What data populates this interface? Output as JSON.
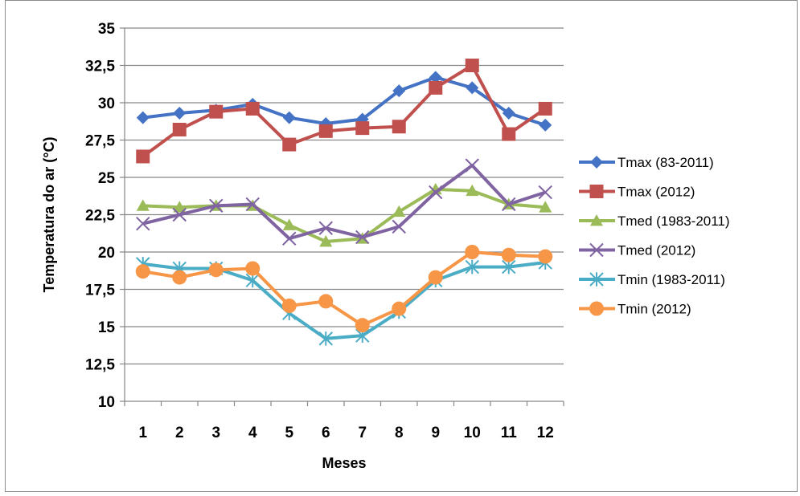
{
  "chart_data": {
    "type": "line",
    "title": "",
    "xlabel": "Meses",
    "ylabel": "Temperatura do ar (°C)",
    "categories": [
      "1",
      "2",
      "3",
      "4",
      "5",
      "6",
      "7",
      "8",
      "9",
      "10",
      "11",
      "12"
    ],
    "ylim": [
      10,
      35
    ],
    "y_ticks": [
      "10",
      "12,5",
      "15",
      "17,5",
      "20",
      "22,5",
      "25",
      "27,5",
      "30",
      "32,5",
      "35"
    ],
    "grid": "horizontal",
    "legend_position": "right",
    "series": [
      {
        "name": "Tmax (83-2011)",
        "color": "#4472C4",
        "marker": "diamond",
        "values": [
          29.0,
          29.3,
          29.5,
          29.9,
          29.0,
          28.6,
          28.9,
          30.8,
          31.7,
          31.0,
          29.3,
          28.5
        ]
      },
      {
        "name": "Tmax (2012)",
        "color": "#C0504D",
        "marker": "square",
        "values": [
          26.4,
          28.2,
          29.4,
          29.6,
          27.2,
          28.1,
          28.3,
          28.4,
          31.0,
          32.5,
          27.9,
          29.6
        ]
      },
      {
        "name": "Tmed (1983-2011)",
        "color": "#9BBB59",
        "marker": "triangle",
        "values": [
          23.1,
          23.0,
          23.1,
          23.1,
          21.8,
          20.7,
          20.9,
          22.7,
          24.2,
          24.1,
          23.2,
          23.0
        ]
      },
      {
        "name": "Tmed (2012)",
        "color": "#8064A2",
        "marker": "x",
        "values": [
          21.9,
          22.5,
          23.1,
          23.2,
          20.9,
          21.6,
          21.0,
          21.7,
          24.0,
          25.8,
          23.2,
          24.0
        ]
      },
      {
        "name": "Tmin (1983-2011)",
        "color": "#4BACC6",
        "marker": "star",
        "values": [
          19.2,
          18.9,
          18.9,
          18.1,
          15.9,
          14.2,
          14.4,
          16.0,
          18.1,
          19.0,
          19.0,
          19.3
        ]
      },
      {
        "name": "Tmin (2012)",
        "color": "#F79646",
        "marker": "circle",
        "values": [
          18.7,
          18.3,
          18.8,
          18.9,
          16.4,
          16.7,
          15.1,
          16.2,
          18.3,
          20.0,
          19.8,
          19.7
        ]
      }
    ]
  }
}
